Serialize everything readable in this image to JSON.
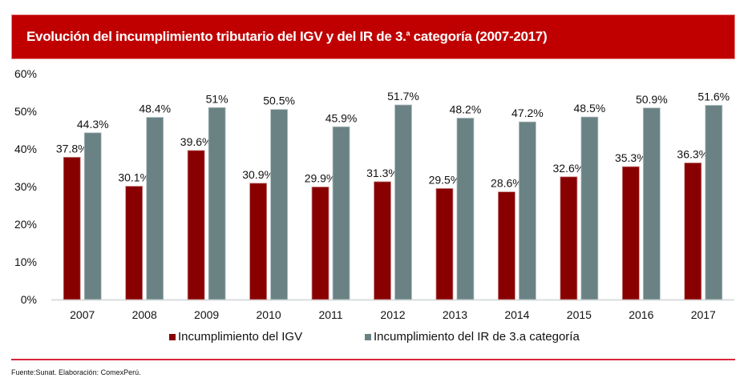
{
  "header": {
    "title_main": "Evolución del incumplimiento tributario del IGV y del IR de 3.",
    "title_sup": "a",
    "title_end": " categoría (2007-2017)"
  },
  "colors": {
    "banner": "#c00000",
    "igv": "#880000",
    "ir": "#6b8285",
    "rule": "#d9263d"
  },
  "chart_data": {
    "type": "bar",
    "title": "Evolución del incumplimiento tributario del IGV y del IR de 3.a categoría (2007-2017)",
    "xlabel": "",
    "ylabel": "",
    "ylim": [
      0,
      60
    ],
    "yticks": [
      0,
      10,
      20,
      30,
      40,
      50,
      60
    ],
    "ytick_labels": [
      "0%",
      "10%",
      "20%",
      "30%",
      "40%",
      "50%",
      "60%"
    ],
    "grid": false,
    "legend_position": "bottom",
    "categories": [
      "2007",
      "2008",
      "2009",
      "2010",
      "2011",
      "2012",
      "2013",
      "2014",
      "2015",
      "2016",
      "2017"
    ],
    "series": [
      {
        "name": "Incumplimiento del IGV",
        "color": "#880000",
        "values": [
          37.8,
          30.1,
          39.6,
          30.9,
          29.9,
          31.3,
          29.5,
          28.6,
          32.6,
          35.3,
          36.3
        ],
        "labels": [
          "37.8%",
          "30.1%",
          "39.6%",
          "30.9%",
          "29.9%",
          "31.3%",
          "29.5%",
          "28.6%",
          "32.6%",
          "35.3%",
          "36.3%"
        ]
      },
      {
        "name": "Incumplimiento del IR de 3.a categoría",
        "color": "#6b8285",
        "values": [
          44.3,
          48.4,
          51,
          50.5,
          45.9,
          51.7,
          48.2,
          47.2,
          48.5,
          50.9,
          51.6
        ],
        "labels": [
          "44.3%",
          "48.4%",
          "51%",
          "50.5%",
          "45.9%",
          "51.7%",
          "48.2%",
          "47.2%",
          "48.5%",
          "50.9%",
          "51.6%"
        ]
      }
    ]
  },
  "legend": {
    "items": [
      {
        "label": "Incumplimiento del IGV"
      },
      {
        "label": "Incumplimiento del IR de 3.a categoría"
      }
    ]
  },
  "footer": {
    "source": "Fuente:Sunat. Elaboración: ComexPerú."
  }
}
